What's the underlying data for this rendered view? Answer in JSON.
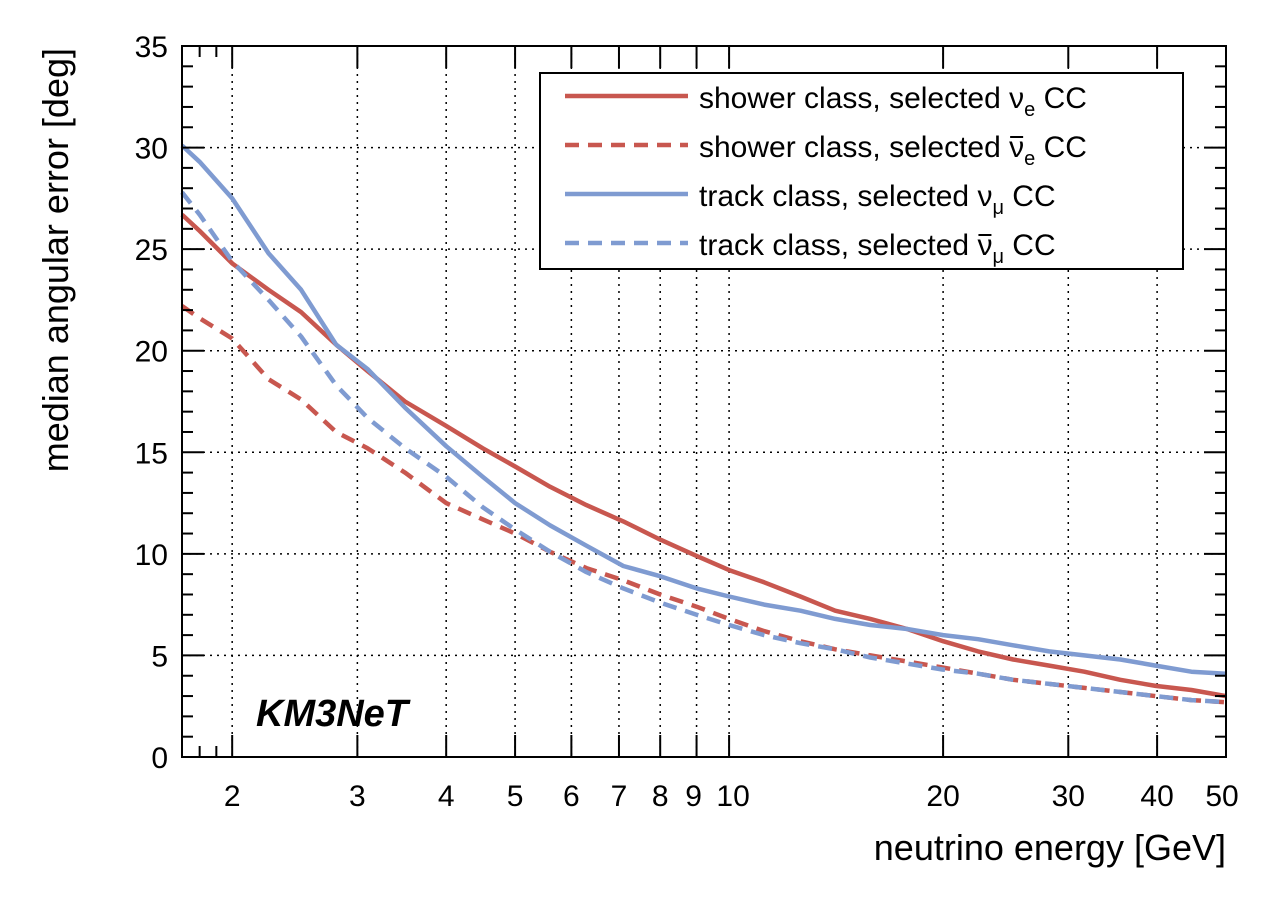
{
  "chart_data": {
    "type": "line",
    "title": "",
    "xlabel": "neutrino energy [GeV]",
    "ylabel": "median angular error [deg]",
    "xscale": "log",
    "xlim": [
      1.7,
      50
    ],
    "ylim": [
      0,
      35
    ],
    "grid": true,
    "legend_position": "top-right",
    "xticks": [
      2,
      3,
      4,
      5,
      6,
      7,
      8,
      9,
      10,
      20,
      30,
      40,
      50
    ],
    "xtick_labels": [
      "2",
      "3",
      "4",
      "5",
      "6",
      "7",
      "8",
      "9",
      "10",
      "20",
      "30",
      "40",
      "50"
    ],
    "yticks": [
      0,
      5,
      10,
      15,
      20,
      25,
      30,
      35
    ],
    "ytick_labels": [
      "0",
      "5",
      "10",
      "15",
      "20",
      "25",
      "30",
      "35"
    ],
    "series": [
      {
        "name": "shower class, selected νe CC",
        "legend": {
          "prefix": "shower class, selected ",
          "nu": "ν",
          "bar": false,
          "sub": "e",
          "suffix": " CC"
        },
        "color": "#c8574f",
        "dashed": false,
        "x": [
          1.7,
          1.8,
          2.0,
          2.25,
          2.5,
          2.8,
          3.1,
          3.5,
          4.0,
          4.5,
          5.0,
          5.6,
          6.3,
          7.1,
          8.0,
          9.0,
          10.0,
          11.2,
          12.6,
          14.1,
          15.8,
          17.8,
          20.0,
          22.4,
          25.1,
          28.2,
          31.6,
          35.5,
          39.8,
          44.7,
          50.0
        ],
        "y": [
          26.7,
          25.9,
          24.3,
          23.0,
          21.9,
          20.3,
          19.0,
          17.5,
          16.3,
          15.2,
          14.3,
          13.3,
          12.4,
          11.6,
          10.7,
          9.9,
          9.2,
          8.6,
          7.9,
          7.2,
          6.8,
          6.3,
          5.7,
          5.2,
          4.8,
          4.5,
          4.2,
          3.8,
          3.5,
          3.3,
          3.0
        ]
      },
      {
        "name": "shower class, selected ν̄e CC",
        "legend": {
          "prefix": "shower class, selected ",
          "nu": "ν",
          "bar": true,
          "sub": "e",
          "suffix": " CC"
        },
        "color": "#c8574f",
        "dashed": true,
        "x": [
          1.7,
          1.8,
          2.0,
          2.25,
          2.5,
          2.8,
          3.1,
          3.5,
          4.0,
          4.5,
          5.0,
          5.6,
          6.3,
          7.1,
          8.0,
          9.0,
          10.0,
          11.2,
          12.6,
          14.1,
          15.8,
          17.8,
          20.0,
          22.4,
          25.1,
          28.2,
          31.6,
          35.5,
          39.8,
          44.7,
          50.0
        ],
        "y": [
          22.2,
          21.6,
          20.6,
          18.6,
          17.6,
          16.0,
          15.2,
          14.0,
          12.5,
          11.7,
          11.0,
          10.1,
          9.3,
          8.7,
          8.0,
          7.4,
          6.8,
          6.2,
          5.7,
          5.3,
          5.0,
          4.7,
          4.4,
          4.1,
          3.8,
          3.6,
          3.4,
          3.2,
          3.0,
          2.8,
          2.7
        ]
      },
      {
        "name": "track class, selected νμ CC",
        "legend": {
          "prefix": "track class, selected ",
          "nu": "ν",
          "bar": false,
          "sub": "μ",
          "suffix": " CC"
        },
        "color": "#7f9bd1",
        "dashed": false,
        "x": [
          1.7,
          1.8,
          2.0,
          2.25,
          2.5,
          2.8,
          3.1,
          3.5,
          4.0,
          4.5,
          5.0,
          5.6,
          6.3,
          7.1,
          8.0,
          9.0,
          10.0,
          11.2,
          12.6,
          14.1,
          15.8,
          17.8,
          20.0,
          22.4,
          25.1,
          28.2,
          31.6,
          35.5,
          39.8,
          44.7,
          50.0
        ],
        "y": [
          30.1,
          29.3,
          27.5,
          24.8,
          23.0,
          20.3,
          19.1,
          17.2,
          15.3,
          13.8,
          12.5,
          11.4,
          10.4,
          9.4,
          8.9,
          8.3,
          7.9,
          7.5,
          7.2,
          6.8,
          6.5,
          6.3,
          6.0,
          5.8,
          5.5,
          5.2,
          5.0,
          4.8,
          4.5,
          4.2,
          4.1
        ]
      },
      {
        "name": "track class, selected ν̄μ CC",
        "legend": {
          "prefix": "track class, selected ",
          "nu": "ν",
          "bar": true,
          "sub": "μ",
          "suffix": " CC"
        },
        "color": "#7f9bd1",
        "dashed": true,
        "x": [
          1.7,
          1.8,
          2.0,
          2.25,
          2.5,
          2.8,
          3.1,
          3.5,
          4.0,
          4.5,
          5.0,
          5.6,
          6.3,
          7.1,
          8.0,
          9.0,
          10.0,
          11.2,
          12.6,
          14.1,
          15.8,
          17.8,
          20.0,
          22.4,
          25.1,
          28.2,
          31.6,
          35.5,
          39.8,
          44.7,
          50.0
        ],
        "y": [
          27.8,
          26.7,
          24.4,
          22.5,
          20.7,
          18.3,
          16.7,
          15.2,
          13.8,
          12.3,
          11.2,
          10.1,
          9.1,
          8.3,
          7.6,
          7.0,
          6.5,
          6.0,
          5.6,
          5.3,
          4.9,
          4.6,
          4.3,
          4.1,
          3.8,
          3.6,
          3.4,
          3.2,
          3.0,
          2.8,
          2.7
        ]
      }
    ]
  },
  "logo": {
    "text": "KM3NeT",
    "color": "#e23b2a"
  }
}
